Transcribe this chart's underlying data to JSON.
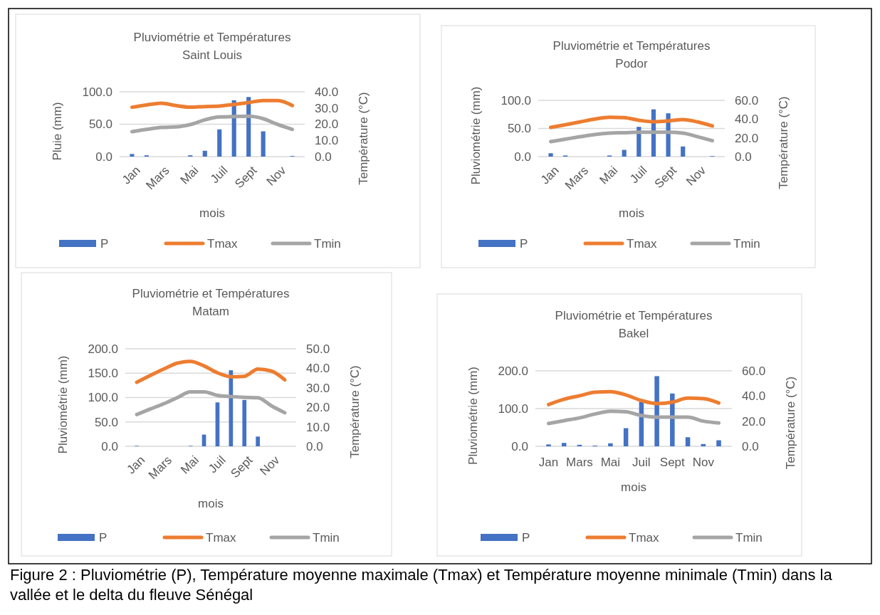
{
  "chart_data": [
    {
      "type": "bar",
      "title": "Pluviométrie et Températures",
      "subtitle": "Saint Louis",
      "xlabel": "mois",
      "ylabel": "Pluie (mm)",
      "y2label": "Température (°C)",
      "categories": [
        "Jan",
        null,
        "Mars",
        null,
        "Mai",
        null,
        "Juil",
        null,
        "Sept",
        null,
        "Nov",
        null
      ],
      "series": [
        {
          "name": "P",
          "color": "#4472c4",
          "values": [
            4,
            2,
            0,
            0,
            2,
            9,
            42,
            87,
            92,
            39,
            0,
            1
          ]
        },
        {
          "name": "Tmax",
          "type": "line",
          "axis": "y2",
          "color": "#ed7d31",
          "values": [
            30.5,
            31.9,
            33,
            31.5,
            30.5,
            30.9,
            31.2,
            32.2,
            33.4,
            34.6,
            34.6,
            31.5
          ]
        },
        {
          "name": "Tmin",
          "type": "line",
          "axis": "y2",
          "color": "#a5a5a5",
          "values": [
            15.4,
            16.8,
            18,
            18.3,
            19.8,
            22.7,
            24.5,
            24.7,
            24.9,
            23.4,
            19.8,
            16.8
          ]
        }
      ],
      "ylim": [
        0,
        100
      ],
      "yticks": [
        {
          "value": 0,
          "label": "0.0"
        },
        {
          "value": 50,
          "label": "50.0"
        },
        {
          "value": 100,
          "label": "100.0"
        }
      ],
      "y2lim": [
        0,
        40
      ],
      "y2ticks": [
        {
          "value": 0,
          "label": "0.0"
        },
        {
          "value": 10,
          "label": "10.0"
        },
        {
          "value": 20,
          "label": "20.0"
        },
        {
          "value": 30,
          "label": "30.0"
        },
        {
          "value": 40,
          "label": "40.0"
        }
      ],
      "grid": "y",
      "legend": "bottom",
      "marker": "none",
      "line_style": "solid"
    },
    {
      "type": "bar",
      "title": "Pluviométrie et Températures",
      "subtitle": "Podor",
      "xlabel": "mois",
      "ylabel": "Pluviométrie (mm)",
      "y2label": "Température (°C)",
      "categories": [
        "Jan",
        null,
        "Mars",
        null,
        "Mai",
        null,
        "Juil",
        null,
        "Sept",
        null,
        "Nov",
        null
      ],
      "series": [
        {
          "name": "P",
          "color": "#4472c4",
          "values": [
            6,
            2,
            0,
            0,
            2,
            12,
            53,
            84,
            77,
            18,
            0,
            1
          ]
        },
        {
          "name": "Tmax",
          "type": "line",
          "axis": "y2",
          "color": "#ed7d31",
          "values": [
            31.1,
            34,
            37,
            40,
            42,
            41.5,
            38.8,
            37.2,
            38,
            39.5,
            37,
            32.7
          ]
        },
        {
          "name": "Tmin",
          "type": "line",
          "axis": "y2",
          "color": "#a5a5a5",
          "values": [
            16,
            18.6,
            21.2,
            23.5,
            25,
            25.5,
            26,
            26,
            26,
            25,
            21.2,
            17
          ]
        }
      ],
      "ylim": [
        0,
        100
      ],
      "yticks": [
        {
          "value": 0,
          "label": "0.0"
        },
        {
          "value": 50,
          "label": "50.0"
        },
        {
          "value": 100,
          "label": "100.0"
        }
      ],
      "y2lim": [
        0,
        60
      ],
      "y2ticks": [
        {
          "value": 0,
          "label": "0.0"
        },
        {
          "value": 20,
          "label": "20.0"
        },
        {
          "value": 40,
          "label": "40.0"
        },
        {
          "value": 60,
          "label": "60.0"
        }
      ],
      "grid": "y",
      "legend": "bottom",
      "marker": "none",
      "line_style": "solid"
    },
    {
      "type": "bar",
      "title": "Pluviométrie et Températures",
      "subtitle": "Matam",
      "xlabel": "mois",
      "ylabel": "Pluviométrie (mm)",
      "y2label": "Température (°C)",
      "categories": [
        "Jan",
        null,
        "Mars",
        null,
        "Mai",
        null,
        "Juil",
        null,
        "Sept",
        null,
        "Nov",
        null
      ],
      "series": [
        {
          "name": "P",
          "color": "#4472c4",
          "values": [
            1,
            0,
            0,
            0,
            1,
            24,
            90,
            156,
            95,
            20,
            0,
            0
          ]
        },
        {
          "name": "Tmax",
          "type": "line",
          "axis": "y2",
          "color": "#ed7d31",
          "values": [
            32.8,
            36.3,
            39.6,
            42.6,
            43.5,
            41.2,
            37.7,
            35.7,
            35.9,
            39.6,
            38.6,
            34.1
          ]
        },
        {
          "name": "Tmin",
          "type": "line",
          "axis": "y2",
          "color": "#a5a5a5",
          "values": [
            16.3,
            19.1,
            21.8,
            24.9,
            27.9,
            27.9,
            26.1,
            25.5,
            25.1,
            24.9,
            20.8,
            17.2
          ]
        }
      ],
      "ylim": [
        0,
        200
      ],
      "yticks": [
        {
          "value": 0,
          "label": "0.0"
        },
        {
          "value": 50,
          "label": "50.0"
        },
        {
          "value": 100,
          "label": "100.0"
        },
        {
          "value": 150,
          "label": "150.0"
        },
        {
          "value": 200,
          "label": "200.0"
        }
      ],
      "y2lim": [
        0,
        50
      ],
      "y2ticks": [
        {
          "value": 0,
          "label": "0.0"
        },
        {
          "value": 10,
          "label": "10.0"
        },
        {
          "value": 20,
          "label": "20.0"
        },
        {
          "value": 30,
          "label": "30.0"
        },
        {
          "value": 40,
          "label": "40.0"
        },
        {
          "value": 50,
          "label": "50.0"
        }
      ],
      "grid": "y",
      "legend": "bottom",
      "marker": "none",
      "line_style": "solid"
    },
    {
      "type": "bar",
      "title": "Pluviométrie et Températures",
      "subtitle": "Bakel",
      "xlabel": "mois",
      "ylabel": "Pluviométrie (mm)",
      "y2label": "Température (°C)",
      "categories": [
        "Jan",
        null,
        "Mars",
        null,
        "Mai",
        null,
        "Juil",
        null,
        "Sept",
        null,
        "Nov",
        null
      ],
      "series": [
        {
          "name": "P",
          "color": "#4472c4",
          "values": [
            5,
            9,
            4,
            2,
            8,
            48,
            118,
            186,
            140,
            24,
            6,
            16
          ]
        },
        {
          "name": "Tmax",
          "type": "line",
          "axis": "y2",
          "color": "#ed7d31",
          "values": [
            33.2,
            37.4,
            40.2,
            43,
            43.4,
            40.8,
            36.4,
            34,
            35.1,
            38.3,
            37.9,
            34.5
          ]
        },
        {
          "name": "Tmin",
          "type": "line",
          "axis": "y2",
          "color": "#a5a5a5",
          "values": [
            18.1,
            20.4,
            22.6,
            25.7,
            27.9,
            27.5,
            24.5,
            23.2,
            23.2,
            23.2,
            20,
            18.5
          ]
        }
      ],
      "ylim": [
        0,
        200
      ],
      "yticks": [
        {
          "value": 0,
          "label": "0.0"
        },
        {
          "value": 100,
          "label": "100.0"
        },
        {
          "value": 200,
          "label": "200.0"
        }
      ],
      "y2lim": [
        0,
        60
      ],
      "y2ticks": [
        {
          "value": 0,
          "label": "0.0"
        },
        {
          "value": 20,
          "label": "20.0"
        },
        {
          "value": 40,
          "label": "40.0"
        },
        {
          "value": 60,
          "label": "60.0"
        }
      ],
      "grid": "y",
      "legend": "bottom",
      "marker": "none",
      "line_style": "solid",
      "annotations": [
        "Figure 2 : Pluviométrie (P), Température moyenne maximale (Tmax) et Température moyenne minimale (Tmin) dans la vallée et le delta du fleuve Sénégal"
      ]
    }
  ]
}
